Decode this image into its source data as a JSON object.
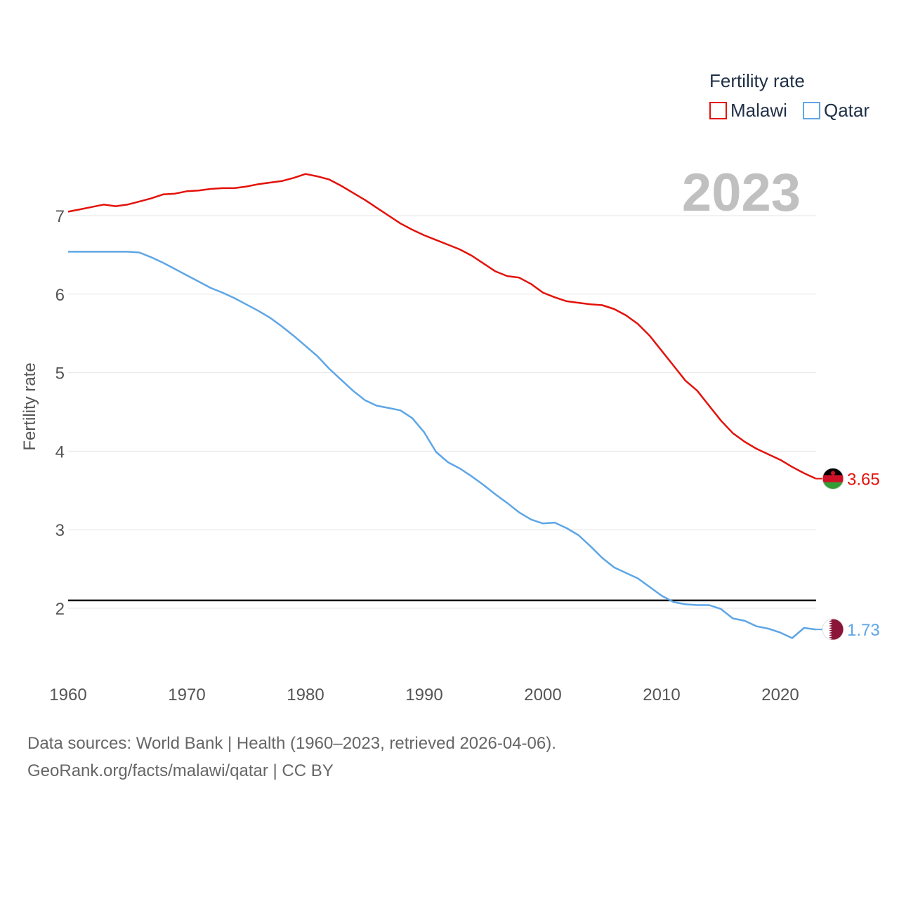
{
  "chart_data": {
    "type": "line",
    "legend_title": "Fertility rate",
    "legend_position": "top-right",
    "ylabel": "Fertility rate",
    "xlabel": "",
    "current_year_label": "2023",
    "x_ticks": [
      "1960",
      "1970",
      "1980",
      "1990",
      "2000",
      "2010",
      "2020"
    ],
    "y_ticks": [
      "2",
      "3",
      "4",
      "5",
      "6",
      "7"
    ],
    "xlim": [
      1960,
      2023
    ],
    "ylim": [
      1.1,
      7.9
    ],
    "reference_line": 2.1,
    "x": [
      1960,
      1961,
      1962,
      1963,
      1964,
      1965,
      1966,
      1967,
      1968,
      1969,
      1970,
      1971,
      1972,
      1973,
      1974,
      1975,
      1976,
      1977,
      1978,
      1979,
      1980,
      1981,
      1982,
      1983,
      1984,
      1985,
      1986,
      1987,
      1988,
      1989,
      1990,
      1991,
      1992,
      1993,
      1994,
      1995,
      1996,
      1997,
      1998,
      1999,
      2000,
      2001,
      2002,
      2003,
      2004,
      2005,
      2006,
      2007,
      2008,
      2009,
      2010,
      2011,
      2012,
      2013,
      2014,
      2015,
      2016,
      2017,
      2018,
      2019,
      2020,
      2021,
      2022,
      2023
    ],
    "series": [
      {
        "name": "Malawi",
        "color": "#e3120b",
        "end_label": "3.65",
        "values": [
          7.05,
          7.08,
          7.11,
          7.14,
          7.12,
          7.14,
          7.18,
          7.22,
          7.27,
          7.28,
          7.31,
          7.32,
          7.34,
          7.35,
          7.35,
          7.37,
          7.4,
          7.42,
          7.44,
          7.48,
          7.53,
          7.5,
          7.46,
          7.38,
          7.29,
          7.2,
          7.1,
          7.0,
          6.9,
          6.82,
          6.75,
          6.69,
          6.63,
          6.57,
          6.49,
          6.39,
          6.29,
          6.23,
          6.21,
          6.13,
          6.02,
          5.96,
          5.91,
          5.89,
          5.87,
          5.86,
          5.81,
          5.73,
          5.62,
          5.47,
          5.28,
          5.09,
          4.9,
          4.77,
          4.58,
          4.39,
          4.23,
          4.12,
          4.03,
          3.96,
          3.89,
          3.8,
          3.72,
          3.65
        ]
      },
      {
        "name": "Qatar",
        "color": "#5ea6e6",
        "end_label": "1.73",
        "values": [
          6.54,
          6.54,
          6.54,
          6.54,
          6.54,
          6.54,
          6.53,
          6.47,
          6.4,
          6.32,
          6.24,
          6.16,
          6.08,
          6.02,
          5.95,
          5.87,
          5.79,
          5.7,
          5.59,
          5.47,
          5.34,
          5.21,
          5.05,
          4.91,
          4.77,
          4.65,
          4.58,
          4.55,
          4.52,
          4.42,
          4.24,
          3.99,
          3.86,
          3.78,
          3.68,
          3.57,
          3.45,
          3.34,
          3.22,
          3.13,
          3.08,
          3.09,
          3.02,
          2.93,
          2.79,
          2.64,
          2.52,
          2.45,
          2.38,
          2.27,
          2.16,
          2.08,
          2.05,
          2.04,
          2.04,
          1.99,
          1.87,
          1.84,
          1.77,
          1.74,
          1.69,
          1.62,
          1.75,
          1.73
        ]
      }
    ],
    "source_line1": "Data sources: World Bank | Health (1960–2023, retrieved 2026-04-06).",
    "source_line2": "GeoRank.org/facts/malawi/qatar | CC BY"
  }
}
